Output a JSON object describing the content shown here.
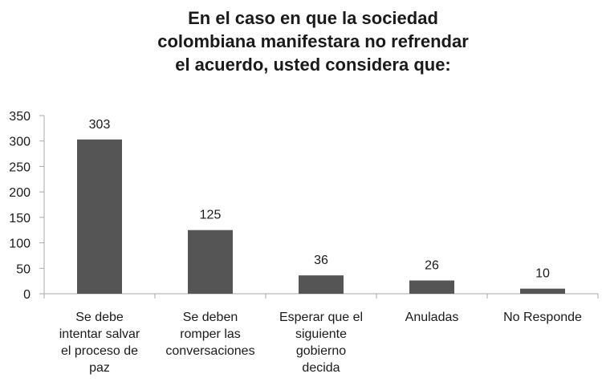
{
  "chart_data": {
    "type": "bar",
    "title_lines": [
      "En el caso en que la sociedad",
      "colombiana manifestara no refrendar",
      "el acuerdo, usted considera que:"
    ],
    "categories": [
      [
        "Se debe",
        "intentar salvar",
        "el proceso de",
        "paz"
      ],
      [
        "Se deben",
        "romper las",
        "conversaciones"
      ],
      [
        "Esperar que el",
        "siguiente",
        "gobierno",
        "decida"
      ],
      [
        "Anuladas"
      ],
      [
        "No Responde"
      ]
    ],
    "values": [
      303,
      125,
      36,
      26,
      10
    ],
    "ylim": [
      0,
      350
    ],
    "yticks": [
      0,
      50,
      100,
      150,
      200,
      250,
      300,
      350
    ],
    "grid": false,
    "legend": "none",
    "bar_color": "#555555",
    "axis_color": "#aaaaaa"
  }
}
